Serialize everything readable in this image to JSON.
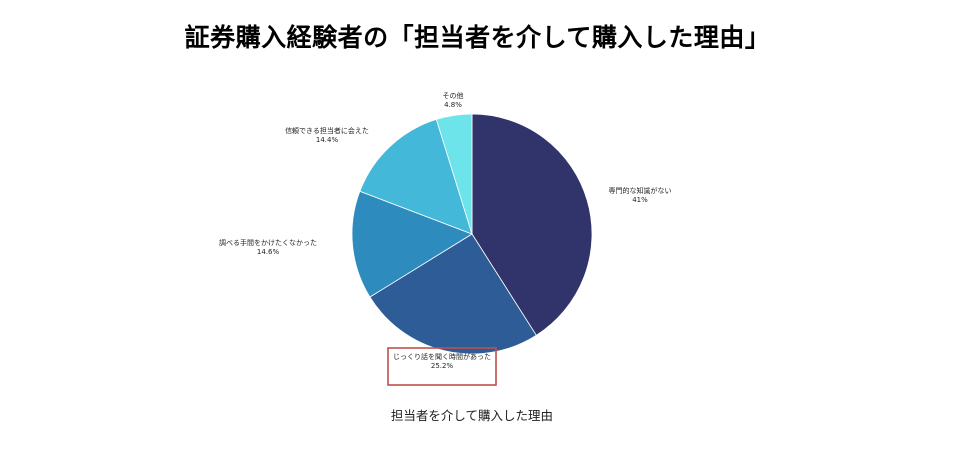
{
  "title": "証券購入経験者の「担当者を介して購入した理由」",
  "chart_data": {
    "type": "pie",
    "caption": "担当者を介して購入した理由",
    "start_angle_deg": 0,
    "direction": "clockwise",
    "slices": [
      {
        "label": "専門的な知識がない",
        "value": 41,
        "value_label": "41%",
        "color": "#30346b",
        "highlighted": false
      },
      {
        "label": "じっくり話を聞く時間があった",
        "value": 25.2,
        "value_label": "25.2%",
        "color": "#2d5c97",
        "highlighted": true
      },
      {
        "label": "調べる手間をかけたくなかった",
        "value": 14.6,
        "value_label": "14.6%",
        "color": "#2e8bbd",
        "highlighted": false
      },
      {
        "label": "信頼できる担当者に会えた",
        "value": 14.4,
        "value_label": "14.4%",
        "color": "#44b8d9",
        "highlighted": false
      },
      {
        "label": "その他",
        "value": 4.8,
        "value_label": "4.8%",
        "color": "#6de3ea",
        "highlighted": false
      }
    ],
    "highlight_color": "#c0504d"
  }
}
